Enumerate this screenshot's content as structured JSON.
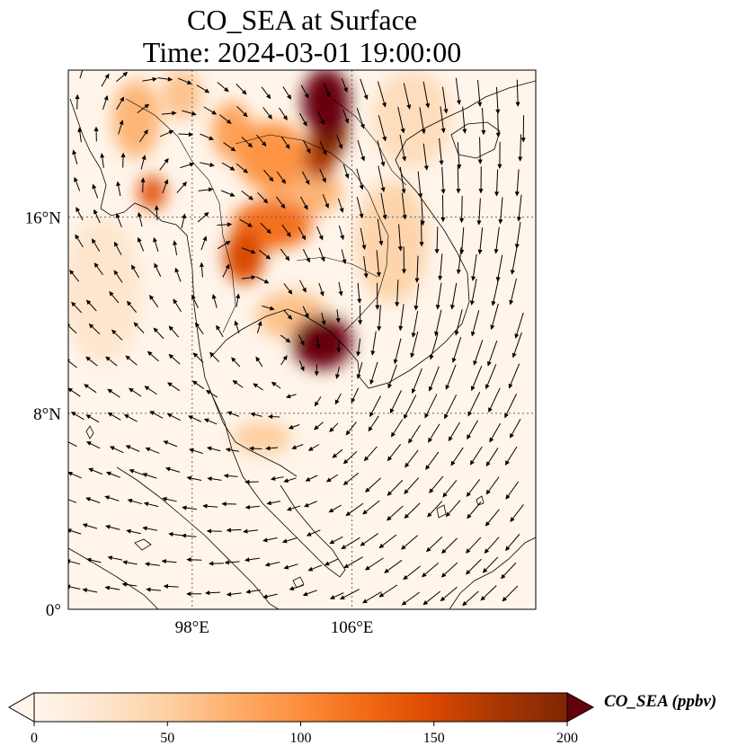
{
  "title": {
    "line1": "CO_SEA at Surface",
    "line2": "Time: 2024-03-01 19:00:00"
  },
  "map": {
    "lon_range": [
      91.8,
      115.2
    ],
    "lat_range": [
      0,
      22
    ],
    "lat_ticks": [
      {
        "value": 0,
        "label": "0°"
      },
      {
        "value": 8,
        "label": "8°N"
      },
      {
        "value": 16,
        "label": "16°N"
      }
    ],
    "lon_ticks": [
      {
        "value": 98,
        "label": "98°E"
      },
      {
        "value": 106,
        "label": "106°E"
      }
    ],
    "gridlines": true,
    "wind_vectors": true,
    "hotspots": [
      {
        "lon": 104.7,
        "lat": 20.7,
        "level": 230,
        "rx": 1.2,
        "ry": 1.4
      },
      {
        "lon": 104.9,
        "lat": 19.6,
        "level": 200,
        "rx": 0.9,
        "ry": 1.2
      },
      {
        "lon": 104.4,
        "lat": 18.5,
        "level": 170,
        "rx": 0.8,
        "ry": 1.0
      },
      {
        "lon": 104.5,
        "lat": 10.9,
        "level": 240,
        "rx": 1.5,
        "ry": 1.1
      },
      {
        "lon": 100.6,
        "lat": 14.4,
        "level": 150,
        "rx": 1.0,
        "ry": 1.1
      },
      {
        "lon": 102.0,
        "lat": 15.7,
        "level": 120,
        "rx": 2.0,
        "ry": 1.0
      },
      {
        "lon": 102.0,
        "lat": 18.5,
        "level": 95,
        "rx": 1.8,
        "ry": 1.4
      },
      {
        "lon": 100.0,
        "lat": 19.5,
        "level": 85,
        "rx": 1.0,
        "ry": 1.2
      },
      {
        "lon": 103.5,
        "lat": 17.0,
        "level": 70,
        "rx": 2.0,
        "ry": 1.0
      },
      {
        "lon": 96.0,
        "lat": 17.0,
        "level": 140,
        "rx": 0.7,
        "ry": 0.7
      },
      {
        "lon": 95.2,
        "lat": 20.0,
        "level": 70,
        "rx": 1.2,
        "ry": 1.6
      },
      {
        "lon": 97.5,
        "lat": 21.0,
        "level": 60,
        "rx": 1.0,
        "ry": 1.0
      },
      {
        "lon": 103.0,
        "lat": 12.0,
        "level": 60,
        "rx": 1.8,
        "ry": 1.0
      },
      {
        "lon": 108.0,
        "lat": 15.0,
        "level": 45,
        "rx": 1.8,
        "ry": 2.5
      },
      {
        "lon": 109.0,
        "lat": 20.0,
        "level": 35,
        "rx": 2.0,
        "ry": 2.0
      },
      {
        "lon": 101.5,
        "lat": 7.0,
        "level": 50,
        "rx": 1.5,
        "ry": 0.7
      },
      {
        "lon": 93.5,
        "lat": 13.0,
        "level": 25,
        "rx": 2.0,
        "ry": 3.0
      }
    ]
  },
  "colorbar": {
    "min": 0,
    "max": 200,
    "ticks": [
      0,
      50,
      100,
      150,
      200
    ],
    "label": "CO_SEA (ppbv)",
    "colormap": [
      "#fff5eb",
      "#fee6ce",
      "#fdd0a2",
      "#fdae6b",
      "#fd8d3c",
      "#f16913",
      "#d94801",
      "#a63603",
      "#7f2704"
    ],
    "extend_low_color": "#fff5eb",
    "extend_high_color": "#67000d"
  }
}
